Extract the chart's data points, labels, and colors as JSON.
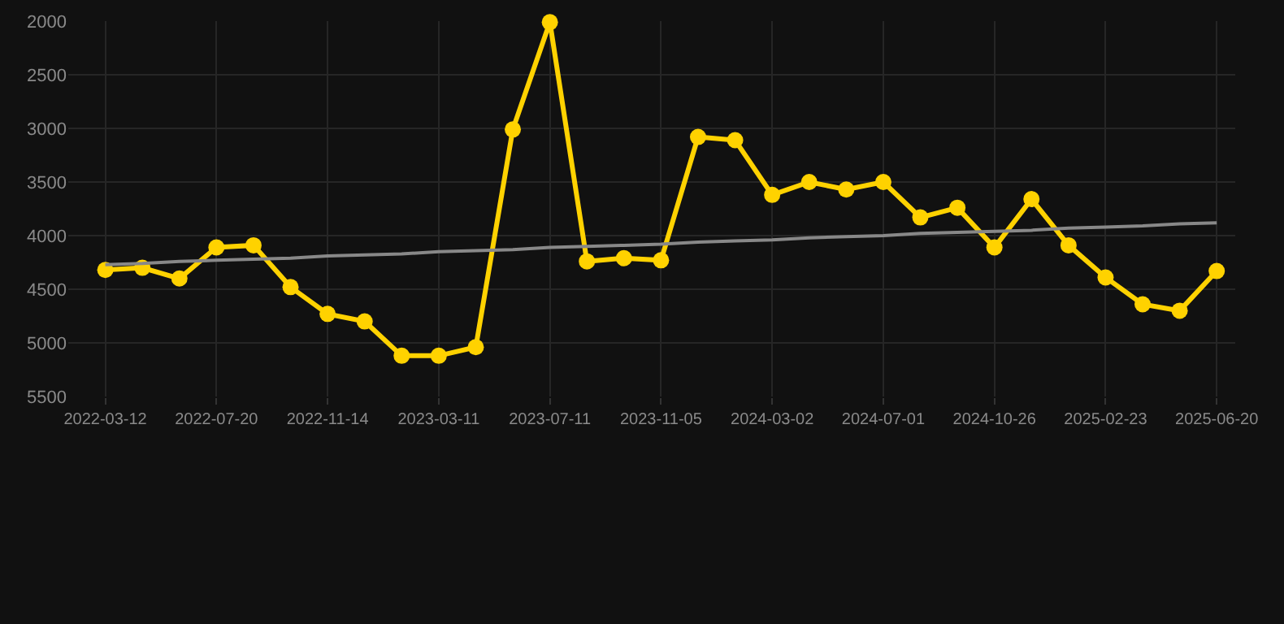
{
  "chart_data": {
    "type": "line",
    "categories": [
      "2022-03-12",
      null,
      null,
      "2022-07-20",
      null,
      null,
      "2022-11-14",
      null,
      null,
      "2023-03-11",
      null,
      null,
      "2023-07-11",
      null,
      null,
      "2023-11-05",
      null,
      null,
      "2024-03-02",
      null,
      null,
      "2024-07-01",
      null,
      null,
      "2024-10-26",
      null,
      null,
      "2025-02-23",
      null,
      null,
      "2025-06-20"
    ],
    "series": [
      {
        "color": "#ffd200",
        "marker": "circle",
        "values": [
          4320,
          4300,
          4400,
          4110,
          4090,
          4480,
          4730,
          4800,
          5120,
          5120,
          5040,
          3010,
          2010,
          4240,
          4210,
          4230,
          3080,
          3110,
          3620,
          3500,
          3570,
          3500,
          3830,
          3740,
          4110,
          3660,
          4090,
          4390,
          4640,
          4700,
          4330
        ]
      },
      {
        "type": "line",
        "color": "#888888",
        "marker": "none",
        "values": [
          4270,
          4260,
          4240,
          4230,
          4220,
          4210,
          4190,
          4180,
          4170,
          4150,
          4140,
          4130,
          4110,
          4100,
          4090,
          4080,
          4060,
          4050,
          4040,
          4020,
          4010,
          4000,
          3980,
          3970,
          3960,
          3950,
          3930,
          3920,
          3910,
          3890,
          3880
        ]
      }
    ],
    "ylim": [
      5500,
      2000
    ],
    "yticks": [
      2000,
      2500,
      3000,
      3500,
      4000,
      4500,
      5000,
      5500
    ],
    "grid": true
  }
}
